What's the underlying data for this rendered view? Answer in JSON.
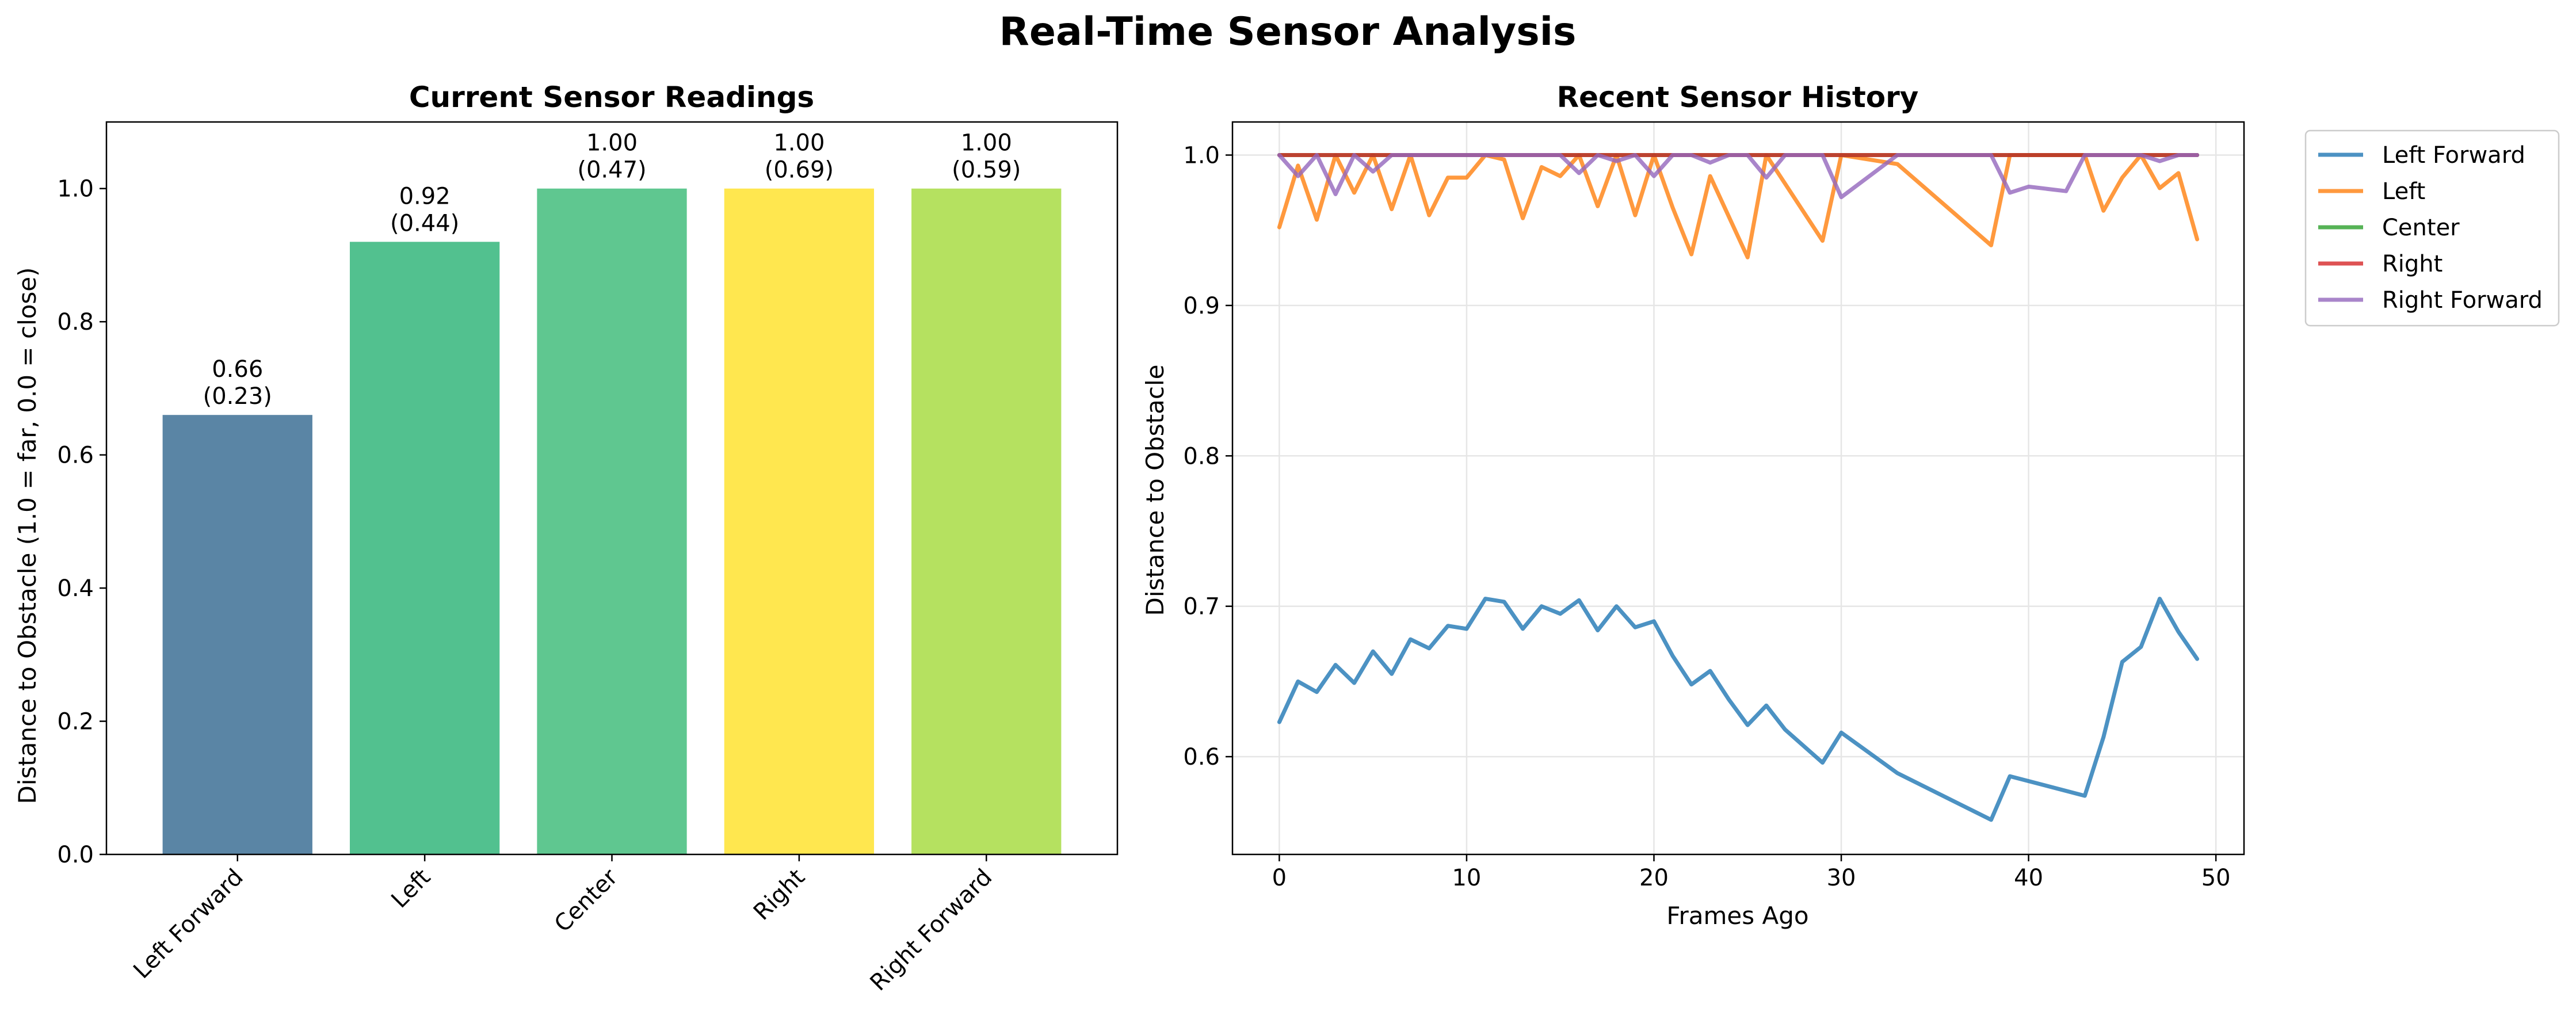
{
  "title": "Real-Time Sensor Analysis",
  "chart_data": [
    {
      "type": "bar",
      "title": "Current Sensor Readings",
      "xlabel": "",
      "ylabel": "Distance to Obstacle (1.0 = far, 0.0 = close)",
      "categories": [
        "Left Forward",
        "Left",
        "Center",
        "Right",
        "Right Forward"
      ],
      "values": [
        0.66,
        0.92,
        1.0,
        1.0,
        1.0
      ],
      "value_labels": [
        "0.66",
        "0.92",
        "1.00",
        "1.00",
        "1.00"
      ],
      "secondary_labels": [
        "(0.23)",
        "(0.44)",
        "(0.47)",
        "(0.69)",
        "(0.59)"
      ],
      "colors": [
        "#5a85a5",
        "#52c18f",
        "#5fc790",
        "#ffe74f",
        "#b5e160"
      ],
      "ylim": [
        0,
        1.1
      ],
      "yticks": [
        0.0,
        0.2,
        0.4,
        0.6,
        0.8,
        1.0
      ],
      "ytick_labels": [
        "0.0",
        "0.2",
        "0.4",
        "0.6",
        "0.8",
        "1.0"
      ],
      "grid": false
    },
    {
      "type": "line",
      "title": "Recent Sensor History",
      "xlabel": "Frames Ago",
      "ylabel": "Distance to Obstacle",
      "xlim": [
        -2.5,
        51.5
      ],
      "ylim": [
        0.535,
        1.022
      ],
      "xticks": [
        0,
        10,
        20,
        30,
        40,
        50
      ],
      "xtick_labels": [
        "0",
        "10",
        "20",
        "30",
        "40",
        "50"
      ],
      "yticks": [
        0.6,
        0.7,
        0.8,
        0.9,
        1.0
      ],
      "ytick_labels": [
        "0.6",
        "0.7",
        "0.8",
        "0.9",
        "1.0"
      ],
      "grid": true,
      "legend": "outside-top-right",
      "series": [
        {
          "name": "Left Forward",
          "color": "#1f77b4",
          "x": [
            0,
            1,
            2,
            3,
            4,
            5,
            6,
            7,
            8,
            9,
            10,
            11,
            12,
            13,
            14,
            15,
            16,
            17,
            18,
            19,
            20,
            21,
            22,
            23,
            24,
            25,
            26,
            27,
            29,
            30,
            33,
            38,
            39,
            43,
            44,
            45,
            46,
            47,
            48,
            49
          ],
          "y": [
            0.623,
            0.65,
            0.643,
            0.661,
            0.649,
            0.67,
            0.655,
            0.678,
            0.672,
            0.687,
            0.685,
            0.705,
            0.703,
            0.685,
            0.7,
            0.695,
            0.704,
            0.684,
            0.7,
            0.686,
            0.69,
            0.667,
            0.648,
            0.657,
            0.638,
            0.621,
            0.634,
            0.618,
            0.596,
            0.616,
            0.589,
            0.558,
            0.587,
            0.574,
            0.613,
            0.663,
            0.673,
            0.705,
            0.683,
            0.665
          ]
        },
        {
          "name": "Left",
          "color": "#ff7f0e",
          "x": [
            0,
            1,
            2,
            3,
            4,
            5,
            6,
            7,
            8,
            9,
            10,
            11,
            12,
            13,
            14,
            15,
            16,
            17,
            18,
            19,
            20,
            21,
            22,
            23,
            25,
            26,
            29,
            30,
            33,
            38,
            39,
            43,
            44,
            45,
            46,
            47,
            48,
            49
          ],
          "y": [
            0.952,
            0.993,
            0.957,
            1.0,
            0.975,
            1.0,
            0.964,
            1.0,
            0.96,
            0.985,
            0.985,
            1.0,
            0.997,
            0.958,
            0.992,
            0.986,
            1.0,
            0.966,
            1.0,
            0.96,
            1.0,
            0.965,
            0.934,
            0.986,
            0.932,
            1.0,
            0.943,
            1.0,
            0.994,
            0.94,
            1.0,
            1.0,
            0.963,
            0.985,
            1.0,
            0.978,
            0.988,
            0.944
          ]
        },
        {
          "name": "Center",
          "color": "#2ca02c",
          "x": [
            0,
            49
          ],
          "y": [
            1.0,
            1.0
          ]
        },
        {
          "name": "Right",
          "color": "#d62728",
          "x": [
            0,
            49
          ],
          "y": [
            1.0,
            1.0
          ]
        },
        {
          "name": "Right Forward",
          "color": "#9467bd",
          "x": [
            0,
            1,
            2,
            3,
            4,
            5,
            6,
            7,
            15,
            16,
            17,
            18,
            19,
            20,
            21,
            22,
            23,
            24,
            25,
            26,
            27,
            29,
            30,
            33,
            38,
            39,
            40,
            42,
            43,
            44,
            45,
            46,
            47,
            48,
            49
          ],
          "y": [
            1.0,
            0.986,
            1.0,
            0.974,
            1.0,
            0.989,
            1.0,
            1.0,
            1.0,
            0.988,
            1.0,
            0.996,
            1.0,
            0.986,
            1.0,
            1.0,
            0.995,
            1.0,
            1.0,
            0.985,
            1.0,
            1.0,
            0.972,
            1.0,
            1.0,
            0.975,
            0.979,
            0.976,
            1.0,
            1.0,
            1.0,
            1.0,
            0.996,
            1.0,
            1.0
          ]
        }
      ]
    }
  ]
}
